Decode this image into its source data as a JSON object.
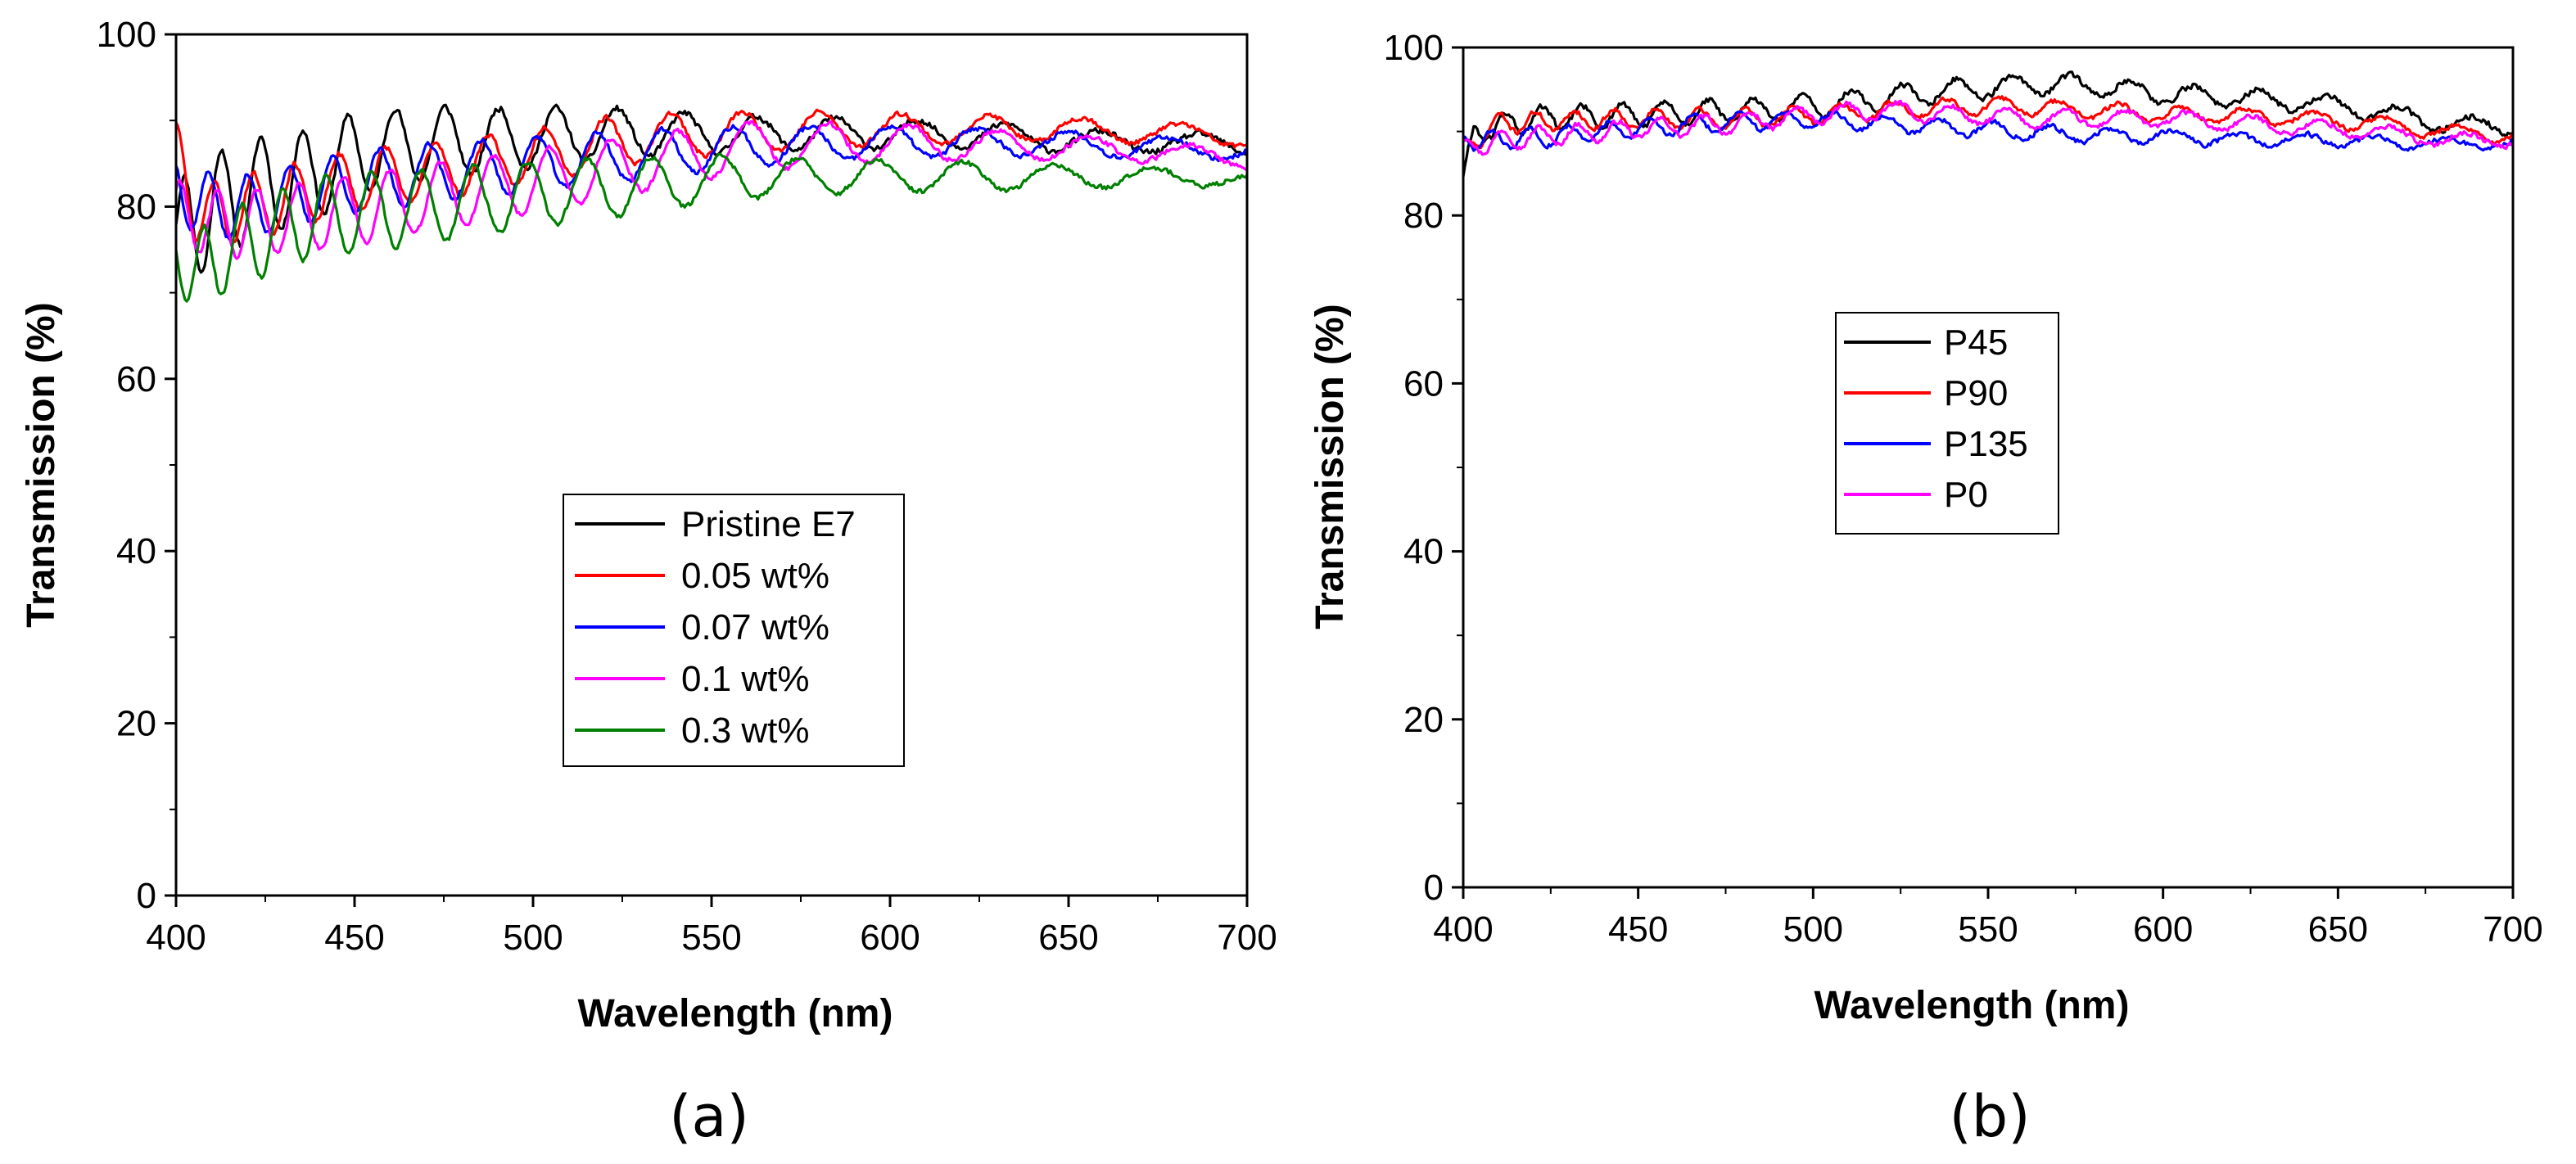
{
  "chart_data": [
    {
      "type": "line",
      "panel_label": "(a)",
      "xlabel": "Wavelength (nm)",
      "ylabel": "Transmission (%)",
      "xlim": [
        400,
        700
      ],
      "ylim": [
        0,
        100
      ],
      "xticks": [
        400,
        450,
        500,
        550,
        600,
        650,
        700
      ],
      "yticks": [
        0,
        20,
        40,
        60,
        80,
        100
      ],
      "grid": false,
      "legend_position": "center",
      "series": [
        {
          "name": "Pristine E7",
          "color": "#000000",
          "base": [
            [
              400,
              76
            ],
            [
              410,
              80
            ],
            [
              420,
              82
            ],
            [
              430,
              83
            ],
            [
              440,
              84
            ],
            [
              450,
              86
            ],
            [
              460,
              87
            ],
            [
              470,
              87.5
            ],
            [
              480,
              87.5
            ],
            [
              500,
              88
            ],
            [
              520,
              88.5
            ],
            [
              540,
              88.5
            ],
            [
              560,
              88.5
            ],
            [
              580,
              88.5
            ],
            [
              600,
              88.5
            ],
            [
              620,
              88.5
            ],
            [
              640,
              88
            ],
            [
              660,
              87.5
            ],
            [
              680,
              87.5
            ],
            [
              700,
              87
            ]
          ],
          "amp": [
            [
              400,
              7
            ],
            [
              420,
              6
            ],
            [
              460,
              4.5
            ],
            [
              520,
              3
            ],
            [
              560,
              2
            ],
            [
              620,
              1.5
            ],
            [
              700,
              1
            ]
          ],
          "period": [
            [
              400,
              10
            ],
            [
              500,
              16
            ],
            [
              560,
              21
            ],
            [
              640,
              26
            ],
            [
              700,
              30
            ]
          ],
          "phase": 0.0,
          "noise": 0.5,
          "seed": 11
        },
        {
          "name": "0.05 wt%",
          "color": "#ff0000",
          "base": [
            [
              400,
              86
            ],
            [
              405,
              80
            ],
            [
              410,
              79
            ],
            [
              420,
              80
            ],
            [
              430,
              81
            ],
            [
              450,
              83
            ],
            [
              470,
              84
            ],
            [
              500,
              86
            ],
            [
              530,
              88
            ],
            [
              550,
              88.5
            ],
            [
              580,
              89
            ],
            [
              600,
              89
            ],
            [
              620,
              89
            ],
            [
              650,
              89
            ],
            [
              680,
              88.5
            ],
            [
              700,
              88
            ]
          ],
          "amp": [
            [
              400,
              4
            ],
            [
              460,
              3.5
            ],
            [
              520,
              3
            ],
            [
              580,
              2
            ],
            [
              640,
              1.5
            ],
            [
              700,
              1
            ]
          ],
          "period": [
            [
              400,
              10
            ],
            [
              500,
              16
            ],
            [
              560,
              21
            ],
            [
              640,
              26
            ],
            [
              700,
              30
            ]
          ],
          "phase": 1.2,
          "noise": 0.4,
          "seed": 23
        },
        {
          "name": "0.07 wt%",
          "color": "#0000ff",
          "base": [
            [
              400,
              82
            ],
            [
              410,
              80
            ],
            [
              420,
              80
            ],
            [
              440,
              82
            ],
            [
              470,
              84
            ],
            [
              500,
              85
            ],
            [
              530,
              86
            ],
            [
              560,
              87
            ],
            [
              600,
              87.5
            ],
            [
              640,
              87.5
            ],
            [
              670,
              87
            ],
            [
              700,
              86.5
            ]
          ],
          "amp": [
            [
              400,
              4
            ],
            [
              460,
              3.5
            ],
            [
              520,
              3
            ],
            [
              580,
              2
            ],
            [
              640,
              1.5
            ],
            [
              700,
              1
            ]
          ],
          "period": [
            [
              400,
              10
            ],
            [
              500,
              16
            ],
            [
              560,
              21
            ],
            [
              640,
              26
            ],
            [
              700,
              30
            ]
          ],
          "phase": 2.0,
          "noise": 0.4,
          "seed": 37
        },
        {
          "name": "0.1 wt%",
          "color": "#ff00ff",
          "base": [
            [
              400,
              79
            ],
            [
              410,
              78
            ],
            [
              420,
              78
            ],
            [
              440,
              79
            ],
            [
              470,
              81
            ],
            [
              500,
              83
            ],
            [
              530,
              85
            ],
            [
              560,
              87
            ],
            [
              600,
              87.5
            ],
            [
              640,
              87
            ],
            [
              670,
              86.5
            ],
            [
              700,
              85.5
            ]
          ],
          "amp": [
            [
              400,
              4
            ],
            [
              460,
              4
            ],
            [
              520,
              3.5
            ],
            [
              580,
              2.5
            ],
            [
              640,
              1.5
            ],
            [
              700,
              1
            ]
          ],
          "period": [
            [
              400,
              10
            ],
            [
              500,
              16
            ],
            [
              560,
              21
            ],
            [
              640,
              26
            ],
            [
              700,
              30
            ]
          ],
          "phase": 0.6,
          "noise": 0.4,
          "seed": 41
        },
        {
          "name": "0.3 wt%",
          "color": "#008000",
          "base": [
            [
              400,
              76
            ],
            [
              405,
              72
            ],
            [
              410,
              74
            ],
            [
              420,
              76
            ],
            [
              440,
              79
            ],
            [
              470,
              80
            ],
            [
              500,
              81.5
            ],
            [
              530,
              82.5
            ],
            [
              560,
              83.5
            ],
            [
              600,
              83.5
            ],
            [
              640,
              83.5
            ],
            [
              680,
              83.5
            ],
            [
              700,
              83
            ]
          ],
          "amp": [
            [
              400,
              5
            ],
            [
              460,
              4.5
            ],
            [
              520,
              3.5
            ],
            [
              580,
              2
            ],
            [
              640,
              1.5
            ],
            [
              700,
              0.8
            ]
          ],
          "period": [
            [
              400,
              10
            ],
            [
              500,
              16
            ],
            [
              560,
              21
            ],
            [
              640,
              26
            ],
            [
              700,
              30
            ]
          ],
          "phase": 3.0,
          "noise": 0.4,
          "seed": 53
        }
      ]
    },
    {
      "type": "line",
      "panel_label": "(b)",
      "xlabel": "Wavelength (nm)",
      "ylabel": "Transmission (%)",
      "xlim": [
        400,
        700
      ],
      "ylim": [
        0,
        100
      ],
      "xticks": [
        400,
        450,
        500,
        550,
        600,
        650,
        700
      ],
      "yticks": [
        0,
        20,
        40,
        60,
        80,
        100
      ],
      "grid": false,
      "legend_position": "center-left",
      "series": [
        {
          "name": "P45",
          "color": "#000000",
          "base": [
            [
              400,
              84
            ],
            [
              403,
              90
            ],
            [
              420,
              91.5
            ],
            [
              450,
              92
            ],
            [
              480,
              92.5
            ],
            [
              500,
              93
            ],
            [
              520,
              94
            ],
            [
              540,
              95
            ],
            [
              560,
              95.5
            ],
            [
              580,
              95.5
            ],
            [
              600,
              94.5
            ],
            [
              620,
              94
            ],
            [
              640,
              93.5
            ],
            [
              660,
              92.5
            ],
            [
              680,
              91
            ],
            [
              700,
              90.5
            ]
          ],
          "amp": [
            [
              400,
              1.5
            ],
            [
              700,
              1
            ]
          ],
          "period": [
            [
              400,
              10
            ],
            [
              700,
              22
            ]
          ],
          "phase": 0.3,
          "noise": 0.5,
          "seed": 61
        },
        {
          "name": "P90",
          "color": "#ff0000",
          "base": [
            [
              400,
              88
            ],
            [
              410,
              91
            ],
            [
              440,
              91.5
            ],
            [
              480,
              91.5
            ],
            [
              500,
              92
            ],
            [
              520,
              92.5
            ],
            [
              540,
              93
            ],
            [
              560,
              93
            ],
            [
              580,
              92.5
            ],
            [
              600,
              92
            ],
            [
              620,
              92
            ],
            [
              640,
              91.5
            ],
            [
              660,
              91
            ],
            [
              680,
              90
            ],
            [
              700,
              89.5
            ]
          ],
          "amp": [
            [
              400,
              1.2
            ],
            [
              700,
              0.8
            ]
          ],
          "period": [
            [
              400,
              10
            ],
            [
              700,
              22
            ]
          ],
          "phase": 1.5,
          "noise": 0.4,
          "seed": 71
        },
        {
          "name": "P135",
          "color": "#0000ff",
          "base": [
            [
              400,
              89
            ],
            [
              410,
              89
            ],
            [
              440,
              90
            ],
            [
              470,
              91
            ],
            [
              500,
              91.5
            ],
            [
              520,
              91
            ],
            [
              540,
              90.5
            ],
            [
              560,
              90
            ],
            [
              580,
              89.5
            ],
            [
              600,
              89.5
            ],
            [
              620,
              89
            ],
            [
              650,
              89
            ],
            [
              680,
              88.5
            ],
            [
              700,
              88.5
            ]
          ],
          "amp": [
            [
              400,
              1.2
            ],
            [
              700,
              0.6
            ]
          ],
          "period": [
            [
              400,
              10
            ],
            [
              700,
              22
            ]
          ],
          "phase": 2.4,
          "noise": 0.4,
          "seed": 83
        },
        {
          "name": "P0",
          "color": "#ff00ff",
          "base": [
            [
              400,
              88
            ],
            [
              410,
              89
            ],
            [
              440,
              90
            ],
            [
              480,
              91
            ],
            [
              500,
              92
            ],
            [
              520,
              92.5
            ],
            [
              540,
              92
            ],
            [
              560,
              91.5
            ],
            [
              580,
              91.5
            ],
            [
              600,
              91.5
            ],
            [
              620,
              91
            ],
            [
              640,
              90.5
            ],
            [
              660,
              90
            ],
            [
              680,
              89
            ],
            [
              700,
              89
            ]
          ],
          "amp": [
            [
              400,
              1.2
            ],
            [
              700,
              0.8
            ]
          ],
          "period": [
            [
              400,
              10
            ],
            [
              700,
              22
            ]
          ],
          "phase": 0.9,
          "noise": 0.4,
          "seed": 97
        }
      ]
    }
  ]
}
